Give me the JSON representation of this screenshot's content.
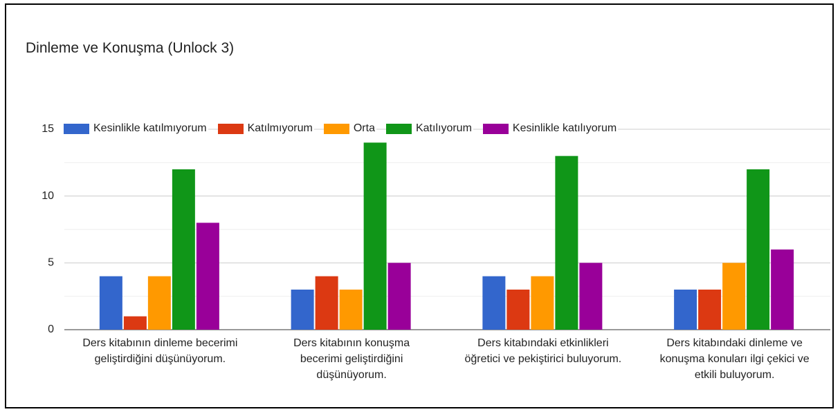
{
  "chart_data": {
    "type": "bar",
    "title": "Dinleme ve Konuşma (Unlock 3)",
    "categories": [
      "Ders kitabının dinleme becerimi geliştirdiğini düşünüyorum.",
      "Ders kitabının konuşma becerimi geliştirdiğini düşünüyorum.",
      "Ders kitabındaki etkinlikleri öğretici ve pekiştirici buluyorum.",
      "Ders kitabındaki dinleme ve konuşma konuları ilgi çekici ve etkili buluyorum."
    ],
    "series": [
      {
        "name": "Kesinlikle katılmıyorum",
        "color": "#3366cc",
        "values": [
          4,
          3,
          4,
          3
        ]
      },
      {
        "name": "Katılmıyorum",
        "color": "#dc3912",
        "values": [
          1,
          4,
          3,
          3
        ]
      },
      {
        "name": "Orta",
        "color": "#ff9900",
        "values": [
          4,
          3,
          4,
          5
        ]
      },
      {
        "name": "Katılıyorum",
        "color": "#109618",
        "values": [
          12,
          14,
          13,
          12
        ]
      },
      {
        "name": "Kesinlikle katılıyorum",
        "color": "#990099",
        "values": [
          8,
          5,
          5,
          6
        ]
      }
    ],
    "ylim": [
      0,
      15
    ],
    "yticks": [
      0,
      5,
      10,
      15
    ],
    "grid": true,
    "legend": "top"
  }
}
